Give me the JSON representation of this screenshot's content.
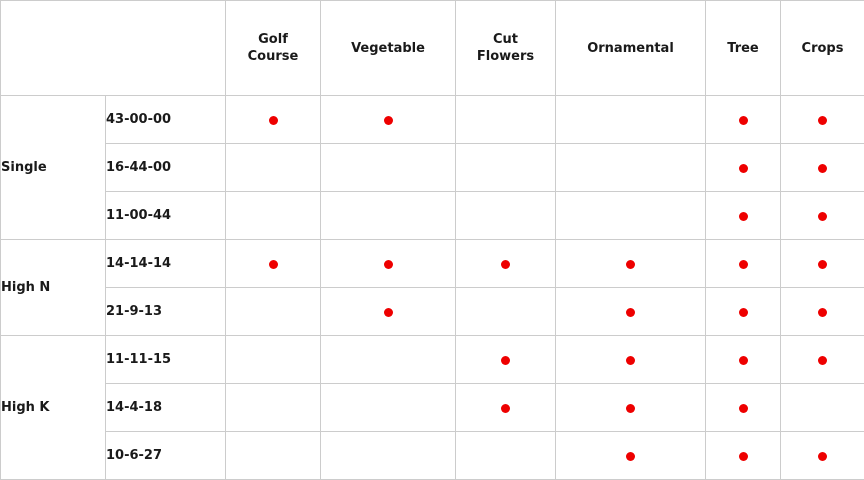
{
  "chart_data": {
    "type": "table",
    "columns": [
      "Golf Course",
      "Vegetable",
      "Cut Flowers",
      "Ornamental",
      "Tree",
      "Crops"
    ],
    "row_groups": [
      {
        "group": "Single",
        "rows": [
          {
            "formula": "43-00-00",
            "marks": [
              1,
              1,
              0,
              0,
              1,
              1
            ]
          },
          {
            "formula": "16-44-00",
            "marks": [
              0,
              0,
              0,
              0,
              1,
              1
            ]
          },
          {
            "formula": "11-00-44",
            "marks": [
              0,
              0,
              0,
              0,
              1,
              1
            ]
          }
        ]
      },
      {
        "group": "High N",
        "rows": [
          {
            "formula": "14-14-14",
            "marks": [
              1,
              1,
              1,
              1,
              1,
              1
            ]
          },
          {
            "formula": "21-9-13",
            "marks": [
              0,
              1,
              0,
              1,
              1,
              1
            ]
          }
        ]
      },
      {
        "group": "High K",
        "rows": [
          {
            "formula": "11-11-15",
            "marks": [
              0,
              0,
              1,
              1,
              1,
              1
            ]
          },
          {
            "formula": "14-4-18",
            "marks": [
              0,
              0,
              1,
              1,
              1,
              0
            ]
          },
          {
            "formula": "10-6-27",
            "marks": [
              0,
              0,
              0,
              1,
              1,
              1
            ]
          }
        ]
      }
    ],
    "mark_symbol": "dot",
    "colors": {
      "dot": "#ee0000",
      "border": "#cccccc",
      "text": "#1a1a1a",
      "background": "#ffffff"
    }
  }
}
